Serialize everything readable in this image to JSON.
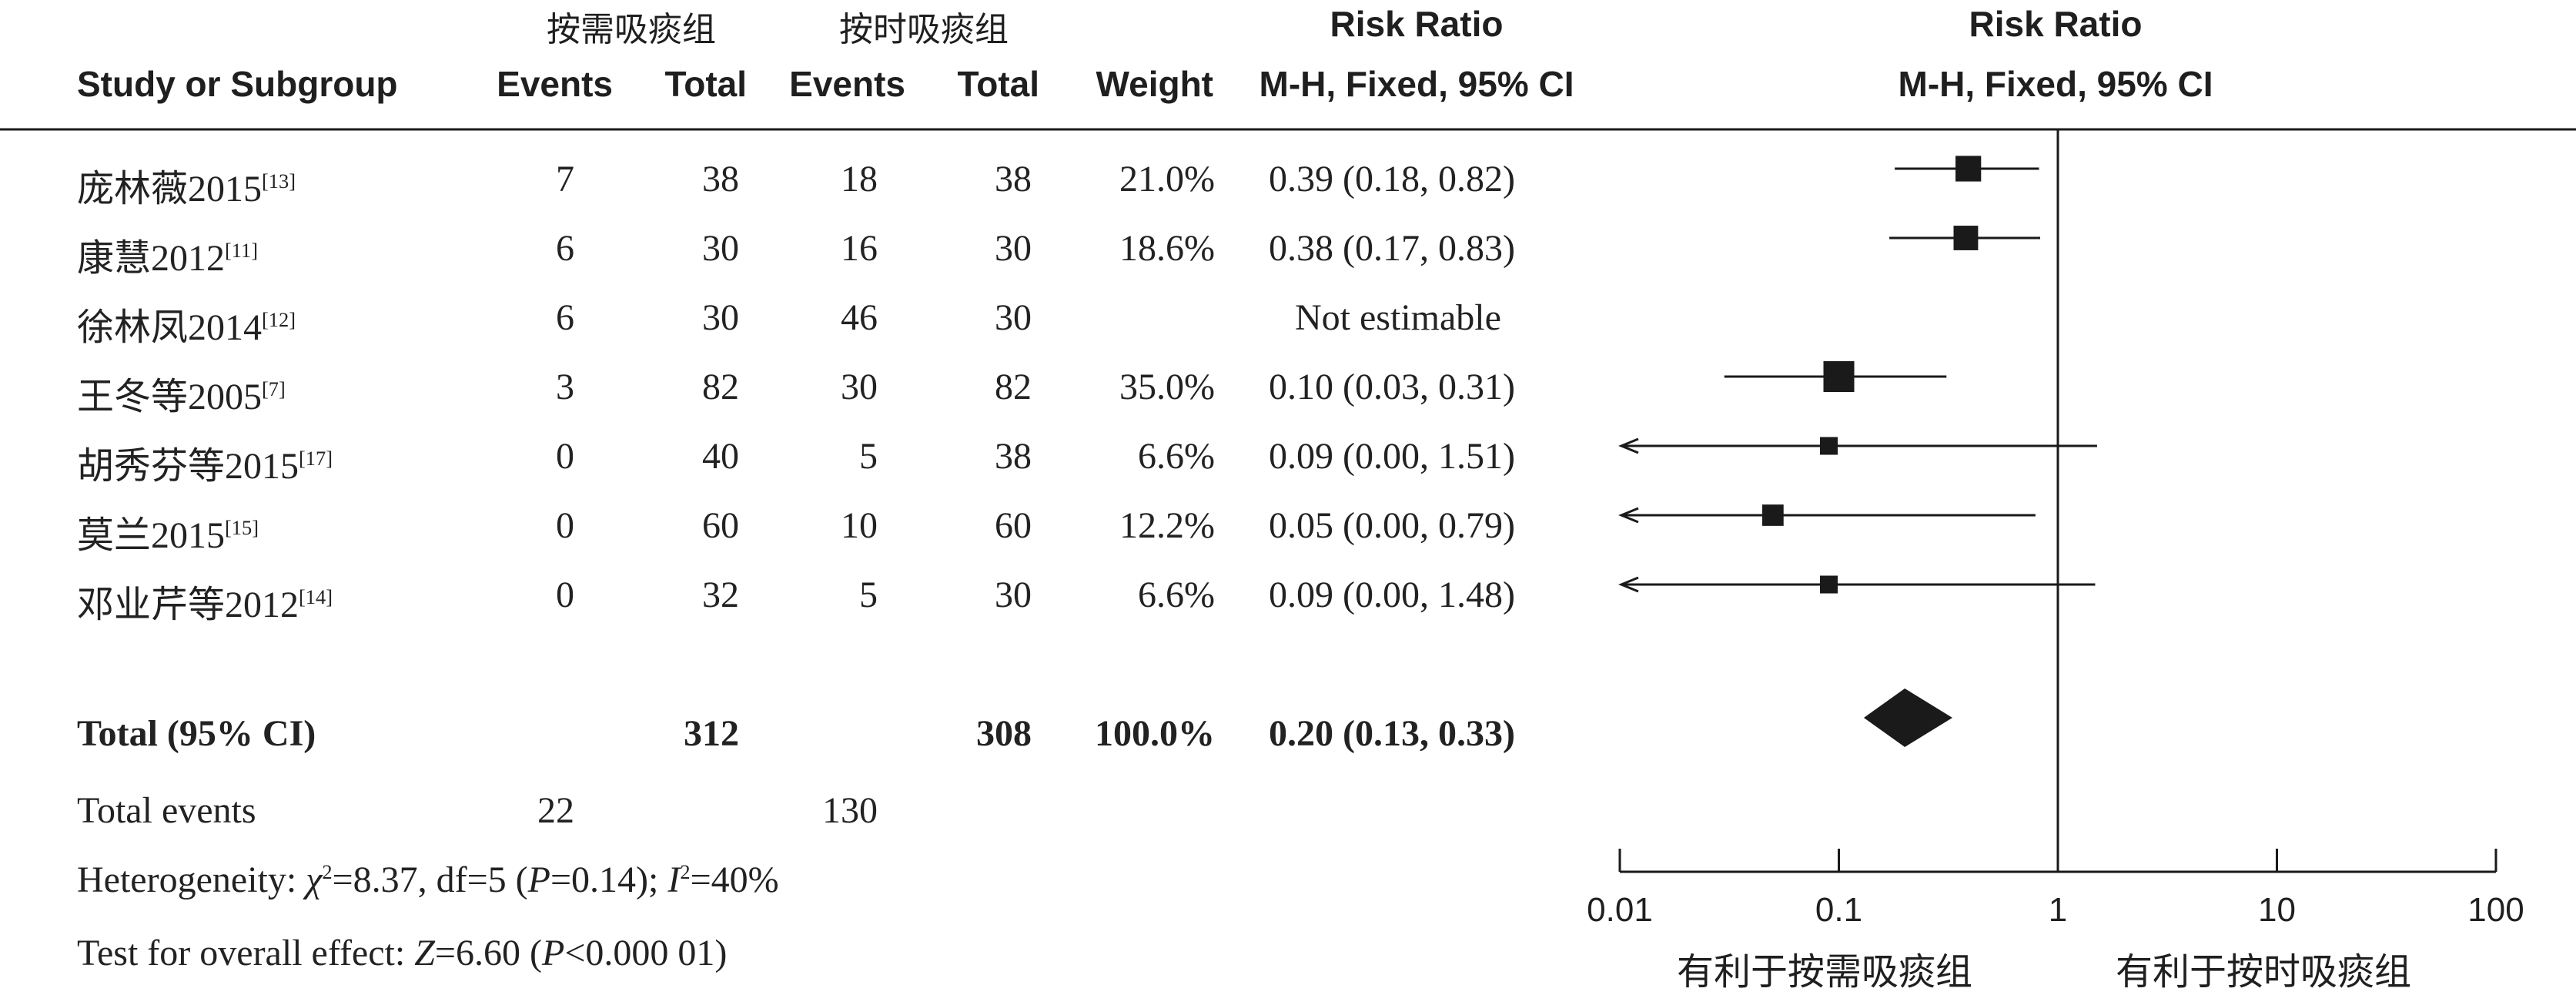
{
  "header": {
    "group1": "按需吸痰组",
    "group2": "按时吸痰组",
    "rr_title": "Risk Ratio",
    "rr_title_plot": "Risk Ratio",
    "rr_method": "M-H, Fixed, 95% CI",
    "rr_method_plot": "M-H, Fixed, 95% CI",
    "study_col": "Study or Subgroup",
    "events1": "Events",
    "total1": "Total",
    "events2": "Events",
    "total2": "Total",
    "weight": "Weight"
  },
  "studies": [
    {
      "name": "庞林薇2015",
      "ref": "[13]",
      "e1": "7",
      "t1": "38",
      "e2": "18",
      "t2": "38",
      "w": "21.0%",
      "ci": "0.39 (0.18, 0.82)"
    },
    {
      "name": "康慧2012",
      "ref": "[11]",
      "e1": "6",
      "t1": "30",
      "e2": "16",
      "t2": "30",
      "w": "18.6%",
      "ci": "0.38 (0.17, 0.83)"
    },
    {
      "name": "徐林凤2014",
      "ref": "[12]",
      "e1": "6",
      "t1": "30",
      "e2": "46",
      "t2": "30",
      "w": "",
      "ci": "Not estimable"
    },
    {
      "name": "王冬等2005",
      "ref": "[7]",
      "e1": "3",
      "t1": "82",
      "e2": "30",
      "t2": "82",
      "w": "35.0%",
      "ci": "0.10 (0.03, 0.31)"
    },
    {
      "name": "胡秀芬等2015",
      "ref": "[17]",
      "e1": "0",
      "t1": "40",
      "e2": "5",
      "t2": "38",
      "w": "6.6%",
      "ci": "0.09 (0.00, 1.51)"
    },
    {
      "name": "莫兰2015",
      "ref": "[15]",
      "e1": "0",
      "t1": "60",
      "e2": "10",
      "t2": "60",
      "w": "12.2%",
      "ci": "0.05 (0.00, 0.79)"
    },
    {
      "name": "邓业芹等2012",
      "ref": "[14]",
      "e1": "0",
      "t1": "32",
      "e2": "5",
      "t2": "30",
      "w": "6.6%",
      "ci": "0.09 (0.00, 1.48)"
    }
  ],
  "total": {
    "label": "Total (95% CI)",
    "t1": "312",
    "t2": "308",
    "w": "100.0%",
    "ci": "0.20 (0.13, 0.33)"
  },
  "total_events": {
    "label": "Total events",
    "e1": "22",
    "e2": "130"
  },
  "heterogeneity": {
    "prefix": "Heterogeneity: ",
    "chi": "χ",
    "chi_sup": "2",
    "chi_val": "=8.37, df=5 (",
    "p_letter": "P",
    "p_val": "=0.14); ",
    "i_letter": "I",
    "i_sup": "2",
    "i_val": "=40%"
  },
  "overall": {
    "prefix": "Test for overall effect: ",
    "z_letter": "Z",
    "z_val": "=6.60 (",
    "p_letter": "P",
    "p_val": "<0.000 01)"
  },
  "axis": {
    "ticks": [
      "0.01",
      "0.1",
      "1",
      "10",
      "100"
    ],
    "favours_left": "有利于按需吸痰组",
    "favours_right": "有利于按时吸痰组"
  },
  "chart_data": {
    "type": "forest",
    "scale": "log",
    "xlim": [
      0.01,
      100
    ],
    "x_ticks": [
      0.01,
      0.1,
      1,
      10,
      100
    ],
    "reference_line": 1,
    "series": [
      {
        "name": "庞林薇2015",
        "rr": 0.39,
        "lo": 0.18,
        "hi": 0.82,
        "weight": 21.0
      },
      {
        "name": "康慧2012",
        "rr": 0.38,
        "lo": 0.17,
        "hi": 0.83,
        "weight": 18.6
      },
      {
        "name": "徐林凤2014",
        "rr": null,
        "lo": null,
        "hi": null,
        "weight": null
      },
      {
        "name": "王冬等2005",
        "rr": 0.1,
        "lo": 0.03,
        "hi": 0.31,
        "weight": 35.0
      },
      {
        "name": "胡秀芬等2015",
        "rr": 0.09,
        "lo": 0.0,
        "hi": 1.51,
        "weight": 6.6
      },
      {
        "name": "莫兰2015",
        "rr": 0.05,
        "lo": 0.0,
        "hi": 0.79,
        "weight": 12.2
      },
      {
        "name": "邓业芹等2012",
        "rr": 0.09,
        "lo": 0.0,
        "hi": 1.48,
        "weight": 6.6
      }
    ],
    "pooled": {
      "rr": 0.2,
      "lo": 0.13,
      "hi": 0.33
    }
  }
}
